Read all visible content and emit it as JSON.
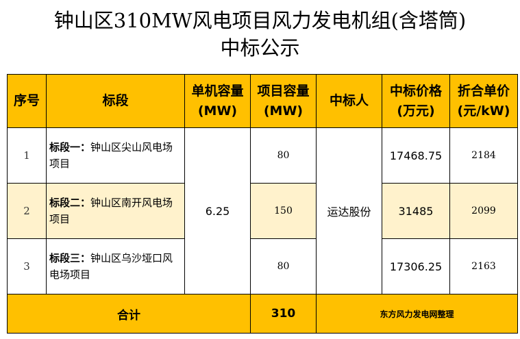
{
  "title": {
    "line1": "钟山区310MW风电项目风力发电机组(含塔筒)",
    "line2": "中标公示"
  },
  "table": {
    "headers": {
      "index": "序号",
      "segment": "标段",
      "unit_capacity": "单机容量(MW)",
      "project_capacity": "项目容量(MW)",
      "winner": "中标人",
      "bid_price": "中标价格(万元)",
      "unit_price": "折合单价(元/kW)"
    },
    "rows": [
      {
        "index": "1",
        "segment_label": "标段一：",
        "segment_name": "钟山区尖山风电场项目",
        "project_capacity": "80",
        "bid_price": "17468.75",
        "unit_price": "2184"
      },
      {
        "index": "2",
        "segment_label": "标段二：",
        "segment_name": "钟山区南开风电场项目",
        "project_capacity": "150",
        "bid_price": "31485",
        "unit_price": "2099"
      },
      {
        "index": "3",
        "segment_label": "标段三：",
        "segment_name": "钟山区乌沙垭口风电场项目",
        "project_capacity": "80",
        "bid_price": "17306.25",
        "unit_price": "2163"
      }
    ],
    "shared": {
      "unit_capacity": "6.25",
      "winner": "运达股份"
    },
    "total": {
      "label": "合计",
      "project_capacity": "310",
      "note": "东方风力发电网整理"
    }
  },
  "colors": {
    "header_bg": "#FFC000",
    "highlight_bg": "#FFF2CC"
  }
}
